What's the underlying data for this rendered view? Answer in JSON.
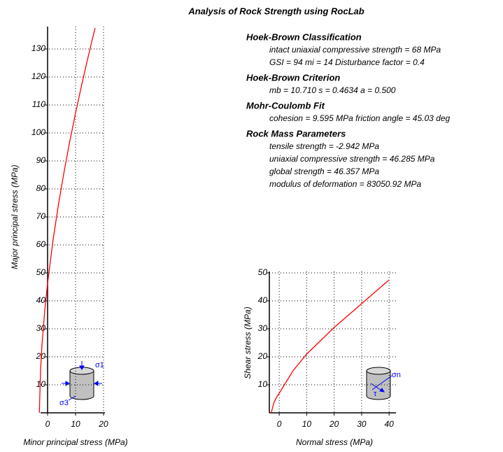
{
  "title": "Analysis of Rock Strength using RocLab",
  "chart_data": [
    {
      "type": "line",
      "x_label": "Minor principal stress (MPa)",
      "y_label": "Major principal stress (MPa)",
      "x": [
        -2.942,
        -2.5,
        -2,
        -1,
        0,
        2,
        4,
        6,
        8,
        10,
        12,
        14,
        16,
        17
      ],
      "series": [
        {
          "color": "#ff0000",
          "values": [
            0,
            15.45,
            24.2,
            36.6,
            46.3,
            62.0,
            75.1,
            86.7,
            97.3,
            107.1,
            116.3,
            125.1,
            133.5,
            137.5
          ]
        }
      ],
      "xlim": [
        -2.5,
        20.5
      ],
      "ylim": [
        0,
        138
      ],
      "xticks": [
        0,
        10,
        20
      ],
      "yticks": [
        10,
        20,
        30,
        40,
        50,
        60,
        70,
        80,
        90,
        100,
        110,
        120,
        130
      ],
      "grid": true
    },
    {
      "type": "line",
      "x_label": "Normal stress (MPa)",
      "y_label": "Shear stress (MPa)",
      "x": [
        -2.9,
        -2,
        -1,
        0,
        5,
        10,
        20,
        30,
        40
      ],
      "series": [
        {
          "color": "#ff0000",
          "values": [
            0,
            3.5,
            5.5,
            7,
            15,
            21,
            30.5,
            39,
            47.5
          ]
        }
      ],
      "xlim": [
        -3.6,
        42.5
      ],
      "ylim": [
        0,
        50.5
      ],
      "xticks": [
        0,
        10,
        20,
        30,
        40
      ],
      "yticks": [
        10,
        20,
        30,
        40,
        50
      ],
      "grid": true
    }
  ],
  "info": [
    {
      "heading": "Hoek-Brown Classification",
      "lines": [
        "intact uniaxial compressive strength = 68 MPa",
        "GSI = 94    mi = 14    Disturbance factor = 0.4"
      ]
    },
    {
      "heading": "Hoek-Brown Criterion",
      "lines": [
        "mb = 10.710    s = 0.4634    a = 0.500"
      ]
    },
    {
      "heading": "Mohr-Coulomb Fit",
      "lines": [
        "cohesion = 9.595 MPa    friction angle = 45.03 deg"
      ]
    },
    {
      "heading": "Rock Mass Parameters",
      "lines": [
        "tensile strength = -2.942 MPa",
        "uniaxial compressive strength = 46.285 MPa",
        "global strength = 46.357 MPa",
        "modulus of deformation = 83050.92 MPa"
      ]
    }
  ],
  "icons": {
    "sigma1": "σ1",
    "sigma3": "σ3",
    "sigman": "σn",
    "tau": "τ"
  }
}
